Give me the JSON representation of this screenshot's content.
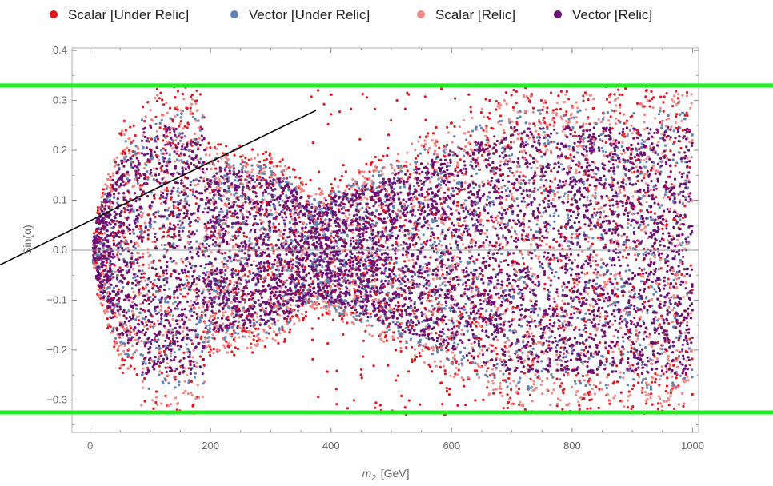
{
  "chart_data": {
    "type": "scatter",
    "title": "",
    "xlabel": "m",
    "xlabel_sub": "2",
    "xlabel_unit": "[GeV]",
    "ylabel": "Sin(α)",
    "xlim": [
      -30,
      1010
    ],
    "ylim": [
      -0.365,
      0.405
    ],
    "x_ticks": [
      0,
      200,
      400,
      600,
      800,
      1000
    ],
    "y_ticks": [
      -0.3,
      -0.2,
      -0.1,
      0.0,
      0.1,
      0.2,
      0.3,
      0.4
    ],
    "y_tick_labels": [
      "−0.3",
      "−0.2",
      "−0.1",
      "0.0",
      "0.1",
      "0.2",
      "0.3",
      "0.4"
    ],
    "grid": false,
    "legend_position": "top",
    "series": [
      {
        "name": "Scalar [Under Relic]",
        "color": "#e8141c"
      },
      {
        "name": "Vector [Under Relic]",
        "color": "#5f82b8"
      },
      {
        "name": "Scalar [Relic]",
        "color": "#f08a86"
      },
      {
        "name": "Vector [Relic]",
        "color": "#6c0f74"
      }
    ],
    "reference_lines": [
      {
        "type": "horizontal",
        "y": 0.33,
        "color": "#1df01d"
      },
      {
        "type": "horizontal",
        "y": -0.325,
        "color": "#1df01d"
      },
      {
        "type": "segment",
        "from": [
          -320,
          -0.13
        ],
        "to": [
          375,
          0.28
        ],
        "color": "#000000"
      },
      {
        "type": "zero-line",
        "y": 0.0,
        "color": "#999999"
      }
    ]
  }
}
